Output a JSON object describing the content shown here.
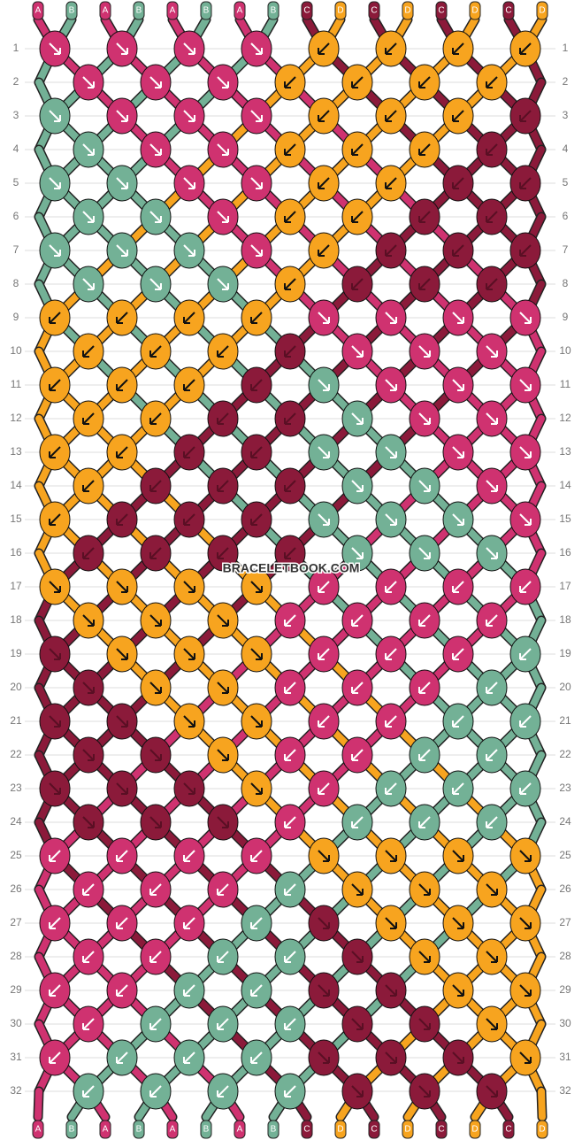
{
  "strings": [
    "A",
    "B",
    "A",
    "B",
    "A",
    "B",
    "A",
    "B",
    "C",
    "D",
    "C",
    "D",
    "C",
    "D",
    "C",
    "D"
  ],
  "colors": {
    "A": "#cf3270",
    "B": "#73b196",
    "C": "#8b1a3a",
    "D": "#f7a41f"
  },
  "rows": [
    {
      "label": 1,
      "knots": [
        "A>",
        "A>",
        "A>",
        "A>",
        "D<",
        "D<",
        "D<",
        "D<"
      ]
    },
    {
      "label": 2,
      "knots": [
        "A>",
        "A>",
        "A>",
        "D<",
        "D<",
        "D<",
        "D<"
      ]
    },
    {
      "label": 3,
      "knots": [
        "B>",
        "A>",
        "A>",
        "A>",
        "D<",
        "D<",
        "D<",
        "C<"
      ]
    },
    {
      "label": 4,
      "knots": [
        "B>",
        "A>",
        "A>",
        "D<",
        "D<",
        "D<",
        "C<"
      ]
    },
    {
      "label": 5,
      "knots": [
        "B>",
        "B>",
        "A>",
        "A>",
        "D<",
        "D<",
        "C<",
        "C<"
      ]
    },
    {
      "label": 6,
      "knots": [
        "B>",
        "B>",
        "A>",
        "D<",
        "D<",
        "C<",
        "C<"
      ]
    },
    {
      "label": 7,
      "knots": [
        "B>",
        "B>",
        "B>",
        "A>",
        "D<",
        "C<",
        "C<",
        "C<"
      ]
    },
    {
      "label": 8,
      "knots": [
        "B>",
        "B>",
        "B>",
        "D<",
        "C<",
        "C<",
        "C<"
      ]
    },
    {
      "label": 9,
      "knots": [
        "D<",
        "D<",
        "D<",
        "D<",
        "A>",
        "A>",
        "A>",
        "A>"
      ]
    },
    {
      "label": 10,
      "knots": [
        "D<",
        "D<",
        "D<",
        "C<",
        "A>",
        "A>",
        "A>"
      ]
    },
    {
      "label": 11,
      "knots": [
        "D<",
        "D<",
        "D<",
        "C<",
        "B>",
        "A>",
        "A>",
        "A>"
      ]
    },
    {
      "label": 12,
      "knots": [
        "D<",
        "D<",
        "C<",
        "C<",
        "B>",
        "A>",
        "A>"
      ]
    },
    {
      "label": 13,
      "knots": [
        "D<",
        "D<",
        "C<",
        "C<",
        "B>",
        "B>",
        "A>",
        "A>"
      ]
    },
    {
      "label": 14,
      "knots": [
        "D<",
        "C<",
        "C<",
        "C<",
        "B>",
        "B>",
        "A>"
      ]
    },
    {
      "label": 15,
      "knots": [
        "D<",
        "C<",
        "C<",
        "C<",
        "B>",
        "B>",
        "B>",
        "A>"
      ]
    },
    {
      "label": 16,
      "knots": [
        "C<",
        "C<",
        "C<",
        "C<",
        "B>",
        "B>",
        "B>"
      ]
    },
    {
      "label": 17,
      "knots": [
        "D>",
        "D>",
        "D>",
        "D>",
        "A<",
        "A<",
        "A<",
        "A<"
      ]
    },
    {
      "label": 18,
      "knots": [
        "D>",
        "D>",
        "D>",
        "A<",
        "A<",
        "A<",
        "A<"
      ]
    },
    {
      "label": 19,
      "knots": [
        "C>",
        "D>",
        "D>",
        "D>",
        "A<",
        "A<",
        "A<",
        "B<"
      ]
    },
    {
      "label": 20,
      "knots": [
        "C>",
        "D>",
        "D>",
        "A<",
        "A<",
        "A<",
        "B<"
      ]
    },
    {
      "label": 21,
      "knots": [
        "C>",
        "C>",
        "D>",
        "D>",
        "A<",
        "A<",
        "B<",
        "B<"
      ]
    },
    {
      "label": 22,
      "knots": [
        "C>",
        "C>",
        "D>",
        "A<",
        "A<",
        "B<",
        "B<"
      ]
    },
    {
      "label": 23,
      "knots": [
        "C>",
        "C>",
        "C>",
        "D>",
        "A<",
        "B<",
        "B<",
        "B<"
      ]
    },
    {
      "label": 24,
      "knots": [
        "C>",
        "C>",
        "C>",
        "A<",
        "B<",
        "B<",
        "B<"
      ]
    },
    {
      "label": 25,
      "knots": [
        "A<",
        "A<",
        "A<",
        "A<",
        "D>",
        "D>",
        "D>",
        "D>"
      ]
    },
    {
      "label": 26,
      "knots": [
        "A<",
        "A<",
        "A<",
        "B<",
        "D>",
        "D>",
        "D>"
      ]
    },
    {
      "label": 27,
      "knots": [
        "A<",
        "A<",
        "A<",
        "B<",
        "C>",
        "D>",
        "D>",
        "D>"
      ]
    },
    {
      "label": 28,
      "knots": [
        "A<",
        "A<",
        "B<",
        "B<",
        "C>",
        "D>",
        "D>"
      ]
    },
    {
      "label": 29,
      "knots": [
        "A<",
        "A<",
        "B<",
        "B<",
        "C>",
        "C>",
        "D>",
        "D>"
      ]
    },
    {
      "label": 30,
      "knots": [
        "A<",
        "B<",
        "B<",
        "B<",
        "C>",
        "C>",
        "D>"
      ]
    },
    {
      "label": 31,
      "knots": [
        "A<",
        "B<",
        "B<",
        "B<",
        "C>",
        "C>",
        "C>",
        "D>"
      ]
    },
    {
      "label": 32,
      "knots": [
        "B<",
        "B<",
        "B<",
        "B<",
        "C>",
        "C>",
        "C>"
      ]
    }
  ],
  "watermark": "BRACELETBOOK.COM"
}
